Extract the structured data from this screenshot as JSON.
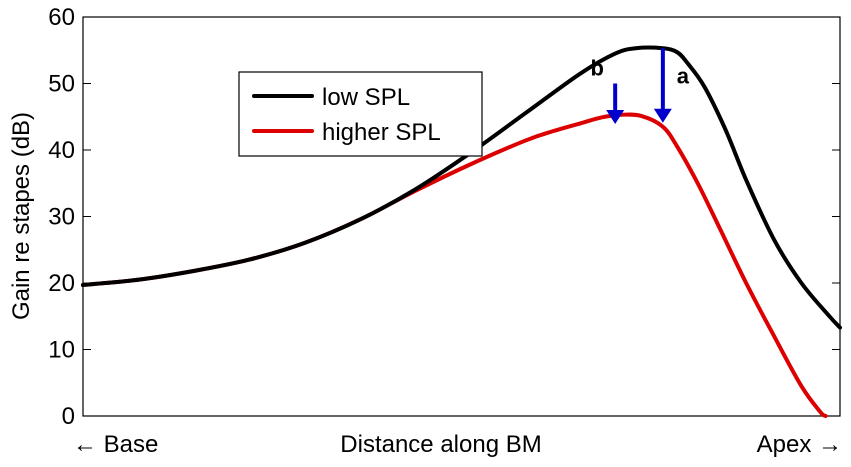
{
  "chart_data": {
    "type": "line",
    "title": "",
    "xlabel": "Distance along BM",
    "ylabel": "Gain re stapes (dB)",
    "x_endpoint_labels": {
      "left": "← Base",
      "right": "Apex →"
    },
    "xlim": [
      0,
      1
    ],
    "ylim": [
      0,
      60
    ],
    "yticks": [
      0,
      10,
      20,
      30,
      40,
      50,
      60
    ],
    "ytick_labels": [
      "0",
      "10",
      "20",
      "30",
      "40",
      "50",
      "60"
    ],
    "grid": false,
    "legend": {
      "placement": "top-center",
      "entries": [
        "low SPL",
        "higher SPL"
      ]
    },
    "series": [
      {
        "name": "low SPL",
        "color": "#000000",
        "x": [
          0.0,
          0.074,
          0.146,
          0.219,
          0.292,
          0.365,
          0.438,
          0.511,
          0.584,
          0.657,
          0.703,
          0.73,
          0.766,
          0.785,
          0.799,
          0.821,
          0.849,
          0.876,
          0.913,
          0.949,
          0.986,
          1.0
        ],
        "y": [
          19.7,
          20.5,
          21.8,
          23.5,
          26.0,
          29.5,
          34.0,
          39.5,
          45.5,
          51.5,
          54.5,
          55.3,
          55.3,
          54.7,
          53.0,
          49.5,
          43.0,
          35.5,
          26.5,
          20.0,
          15.0,
          13.3
        ]
      },
      {
        "name": "higher SPL",
        "color": "#dd0000",
        "x": [
          0.0,
          0.074,
          0.146,
          0.219,
          0.292,
          0.365,
          0.438,
          0.511,
          0.584,
          0.62,
          0.657,
          0.685,
          0.712,
          0.738,
          0.766,
          0.785,
          0.812,
          0.84,
          0.876,
          0.913,
          0.949,
          0.974,
          0.981
        ],
        "y": [
          19.7,
          20.5,
          21.8,
          23.5,
          26.0,
          29.5,
          33.8,
          37.8,
          41.4,
          42.8,
          44.0,
          44.9,
          45.3,
          45.1,
          43.5,
          40.5,
          35.0,
          28.5,
          20.0,
          12.0,
          4.5,
          0.6,
          0.0
        ]
      }
    ],
    "annotations": [
      {
        "label": "a",
        "color": "#0000cc",
        "x": 0.766,
        "y_from": 55.3,
        "y_to": 44.1
      },
      {
        "label": "b",
        "color": "#0000cc",
        "x": 0.703,
        "y_from": 50.0,
        "y_to": 43.9
      }
    ]
  }
}
